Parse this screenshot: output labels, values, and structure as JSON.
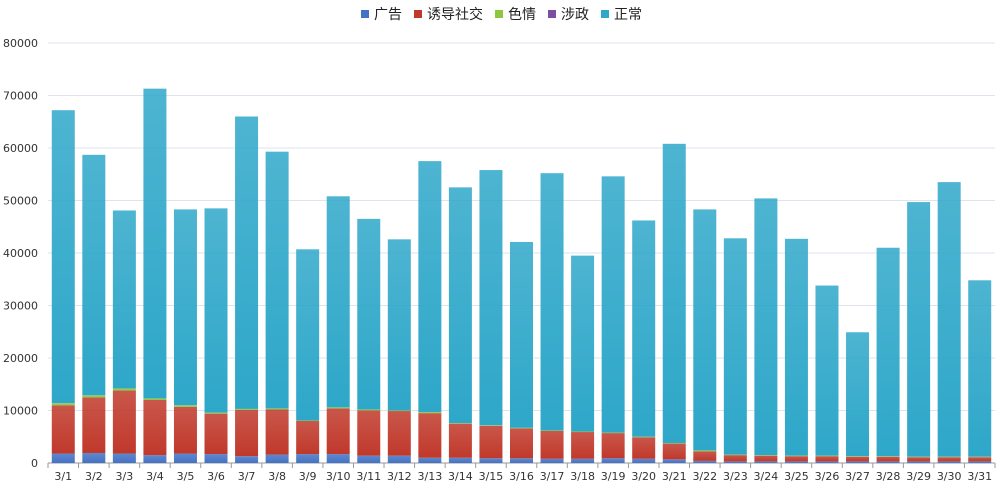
{
  "chart_data": {
    "type": "bar",
    "stacked": true,
    "categories": [
      "3/1",
      "3/2",
      "3/3",
      "3/4",
      "3/5",
      "3/6",
      "3/7",
      "3/8",
      "3/9",
      "3/10",
      "3/11",
      "3/12",
      "3/13",
      "3/14",
      "3/15",
      "3/16",
      "3/17",
      "3/18",
      "3/19",
      "3/20",
      "3/21",
      "3/22",
      "3/23",
      "3/24",
      "3/25",
      "3/26",
      "3/27",
      "3/28",
      "3/29",
      "3/30",
      "3/31"
    ],
    "ylim": [
      0,
      80000
    ],
    "yticks": [
      0,
      10000,
      20000,
      30000,
      40000,
      50000,
      60000,
      70000,
      80000
    ],
    "grid": true,
    "legend_position": "top",
    "series": [
      {
        "name": "广告",
        "color": "#4472c4",
        "values": [
          1800,
          1900,
          1800,
          1500,
          1800,
          1700,
          1300,
          1600,
          1700,
          1700,
          1400,
          1400,
          1000,
          1000,
          900,
          900,
          800,
          800,
          900,
          800,
          700,
          400,
          300,
          300,
          300,
          300,
          300,
          300,
          300,
          300,
          300
        ]
      },
      {
        "name": "诱导社交",
        "color": "#c0392b",
        "values": [
          9200,
          10600,
          12000,
          10500,
          8900,
          7700,
          8800,
          8600,
          6300,
          8700,
          8600,
          8500,
          8500,
          6500,
          6200,
          5700,
          5300,
          5100,
          4800,
          4100,
          3000,
          1800,
          1200,
          1100,
          1000,
          1000,
          900,
          900,
          800,
          800,
          800
        ]
      },
      {
        "name": "色情",
        "color": "#8dc63f",
        "values": [
          400,
          400,
          400,
          300,
          300,
          200,
          200,
          200,
          100,
          200,
          200,
          100,
          200,
          100,
          100,
          100,
          100,
          100,
          100,
          100,
          100,
          200,
          100,
          100,
          100,
          100,
          100,
          100,
          100,
          100,
          100
        ]
      },
      {
        "name": "涉政",
        "color": "#7b4fa0",
        "values": [
          0,
          0,
          0,
          0,
          0,
          0,
          0,
          0,
          0,
          0,
          0,
          0,
          0,
          0,
          0,
          0,
          0,
          0,
          0,
          0,
          0,
          0,
          0,
          0,
          0,
          0,
          0,
          0,
          0,
          0,
          0
        ]
      },
      {
        "name": "正常",
        "color": "#2ea7c9",
        "values": [
          55800,
          45800,
          33900,
          59000,
          37300,
          38900,
          55700,
          48900,
          32600,
          40200,
          36300,
          32600,
          47800,
          44900,
          48600,
          35400,
          49000,
          33500,
          48800,
          41200,
          57000,
          45900,
          41200,
          48900,
          41300,
          32400,
          23600,
          39700,
          48500,
          52300,
          33600
        ]
      }
    ]
  }
}
